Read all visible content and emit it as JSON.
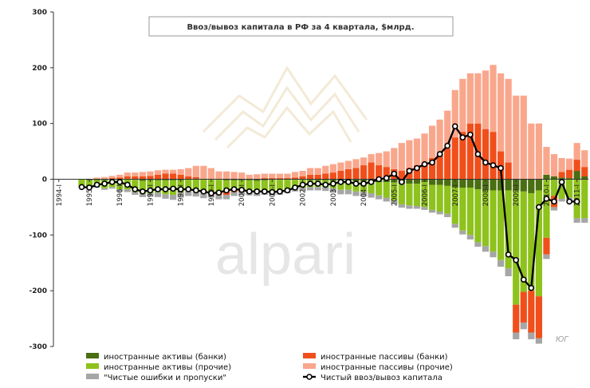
{
  "chart_data": {
    "type": "bar",
    "title": "Ввоз/вывоз капитала в РФ  за 4 квартала, $млрд.",
    "stacked": true,
    "ylim": [
      -300,
      300
    ],
    "yticks": [
      -300,
      -200,
      -100,
      0,
      100,
      200,
      300
    ],
    "grid": false,
    "legend_position": "bottom",
    "categories": [
      "1994-I",
      "1994-II",
      "1994-III",
      "1994-IV",
      "1995-I",
      "1995-II",
      "1995-III",
      "1995-IV",
      "1996-I",
      "1996-II",
      "1996-III",
      "1996-IV",
      "1997-I",
      "1997-II",
      "1997-III",
      "1997-IV",
      "1998-I",
      "1998-II",
      "1998-III",
      "1998-IV",
      "1999-I",
      "1999-II",
      "1999-III",
      "1999-IV",
      "2000-I",
      "2000-II",
      "2000-III",
      "2000-IV",
      "2001-I",
      "2001-II",
      "2001-III",
      "2001-IV",
      "2002-I",
      "2002-II",
      "2002-III",
      "2002-IV",
      "2003-I",
      "2003-II",
      "2003-III",
      "2003-IV",
      "2004-I",
      "2004-II",
      "2004-III",
      "2004-IV",
      "2005-I",
      "2005-II",
      "2005-III",
      "2005-IV",
      "2006-I",
      "2006-II",
      "2006-III",
      "2006-IV",
      "2007-I",
      "2007-II",
      "2007-III",
      "2007-IV",
      "2008-I",
      "2008-II",
      "2008-III",
      "2008-IV",
      "2009-I",
      "2009-II",
      "2009-III",
      "2009-IV",
      "2010-I",
      "2010-II",
      "2010-III",
      "2010-IV",
      "2011-I",
      "2011-II"
    ],
    "x_tick_labels": [
      "1994-I",
      "1995-I",
      "1996-I",
      "1997-I",
      "1998-I",
      "1999-I",
      "2000-I",
      "2001-I",
      "2002-I",
      "2003-I",
      "2004-I",
      "2005-I",
      "2006-I",
      "2007-I",
      "2008-I",
      "2009-I",
      "2010-I",
      "2011-I"
    ],
    "series": [
      {
        "name": "иностранные активы (банки)",
        "color": "#4a6e12",
        "kind": "bar",
        "values": [
          0,
          0,
          0,
          0,
          -2,
          -2,
          -2,
          -1,
          -1,
          1,
          -1,
          -3,
          -2,
          -2,
          -2,
          -2,
          -2,
          0,
          1,
          0,
          -1,
          -1,
          -2,
          -2,
          -2,
          -2,
          -3,
          -2,
          -1,
          -1,
          -1,
          -1,
          -1,
          -2,
          -2,
          -2,
          -3,
          -3,
          -3,
          -4,
          -4,
          -5,
          -5,
          -5,
          -6,
          -8,
          -8,
          -8,
          -5,
          -10,
          -10,
          -12,
          -15,
          -15,
          -15,
          -18,
          -20,
          -20,
          -20,
          -20,
          -20,
          -22,
          -25,
          -20,
          8,
          5,
          3,
          2,
          15,
          5
        ]
      },
      {
        "name": "иностранные активы (прочие)",
        "color": "#8ec21c",
        "kind": "bar",
        "values": [
          0,
          0,
          0,
          -12,
          -12,
          -11,
          -14,
          -13,
          -17,
          -18,
          -22,
          -23,
          -23,
          -22,
          -25,
          -26,
          -22,
          -21,
          -22,
          -25,
          -22,
          -21,
          -20,
          -18,
          -18,
          -19,
          -20,
          -20,
          -22,
          -21,
          -18,
          -15,
          -14,
          -12,
          -12,
          -12,
          -13,
          -16,
          -16,
          -18,
          -19,
          -20,
          -24,
          -28,
          -32,
          -37,
          -39,
          -40,
          -45,
          -45,
          -48,
          -50,
          -65,
          -77,
          -85,
          -95,
          -100,
          -110,
          -125,
          -140,
          -205,
          -180,
          -175,
          -190,
          -105,
          -30,
          -35,
          -33,
          -70,
          -70
        ]
      },
      {
        "name": "иностранные пассивы (банки)",
        "color": "#f04f1b",
        "kind": "bar",
        "values": [
          0,
          0,
          0,
          0,
          0,
          1,
          1,
          2,
          3,
          4,
          5,
          5,
          6,
          8,
          10,
          10,
          8,
          5,
          3,
          1,
          -2,
          -6,
          -6,
          -3,
          -2,
          -1,
          1,
          2,
          2,
          2,
          2,
          3,
          5,
          8,
          8,
          10,
          12,
          15,
          18,
          20,
          25,
          30,
          25,
          22,
          18,
          15,
          20,
          25,
          30,
          38,
          45,
          55,
          75,
          85,
          100,
          100,
          90,
          85,
          50,
          30,
          -50,
          -55,
          -75,
          -75,
          -30,
          -20,
          10,
          15,
          20,
          17
        ]
      },
      {
        "name": "иностранные пассивы (прочие)",
        "color": "#f9a78c",
        "kind": "bar",
        "values": [
          0,
          0,
          0,
          0,
          1,
          2,
          3,
          4,
          5,
          7,
          7,
          8,
          8,
          8,
          7,
          7,
          10,
          15,
          20,
          23,
          20,
          14,
          14,
          13,
          12,
          8,
          8,
          8,
          8,
          8,
          8,
          10,
          10,
          12,
          12,
          14,
          15,
          15,
          15,
          16,
          14,
          15,
          22,
          28,
          38,
          50,
          50,
          48,
          52,
          58,
          62,
          68,
          85,
          95,
          90,
          90,
          105,
          120,
          140,
          150,
          150,
          150,
          100,
          100,
          50,
          40,
          25,
          20,
          30,
          30
        ]
      },
      {
        "name": "\"Чистые ошибки и пропуски\"",
        "color": "#a6a6a6",
        "kind": "bar",
        "values": [
          0,
          0,
          0,
          -2,
          -2,
          -2,
          -3,
          -3,
          -4,
          -5,
          -5,
          -6,
          -6,
          -8,
          -8,
          -9,
          -9,
          -9,
          -9,
          -9,
          -8,
          -8,
          -8,
          -7,
          -7,
          -7,
          -7,
          -6,
          -6,
          -6,
          -6,
          -6,
          -6,
          -6,
          -6,
          -7,
          -8,
          -8,
          -8,
          -8,
          -8,
          -8,
          -7,
          -7,
          -6,
          -6,
          -6,
          -5,
          -5,
          -5,
          -5,
          -6,
          -7,
          -7,
          -8,
          -8,
          -10,
          -10,
          -12,
          -14,
          -12,
          -12,
          -12,
          -10,
          -8,
          -6,
          -5,
          -5,
          -8,
          -8
        ]
      },
      {
        "name": "Чистый ввоз/вывоз капитала",
        "color": "#000000",
        "kind": "line",
        "values": [
          null,
          null,
          null,
          -14,
          -15,
          -10,
          -8,
          -5,
          -5,
          -10,
          -18,
          -22,
          -20,
          -18,
          -18,
          -17,
          -18,
          -18,
          -20,
          -22,
          -25,
          -24,
          -20,
          -18,
          -19,
          -22,
          -22,
          -22,
          -23,
          -22,
          -20,
          -15,
          -10,
          -8,
          -8,
          -10,
          -8,
          -5,
          -5,
          -8,
          -8,
          -5,
          0,
          2,
          10,
          -5,
          15,
          20,
          27,
          30,
          45,
          60,
          95,
          75,
          80,
          45,
          30,
          25,
          20,
          -135,
          -145,
          -180,
          -195,
          -50,
          -35,
          -40,
          -5,
          -40,
          -40,
          null
        ]
      }
    ]
  },
  "watermark": "alpari",
  "corner_mark": "ЮГ"
}
